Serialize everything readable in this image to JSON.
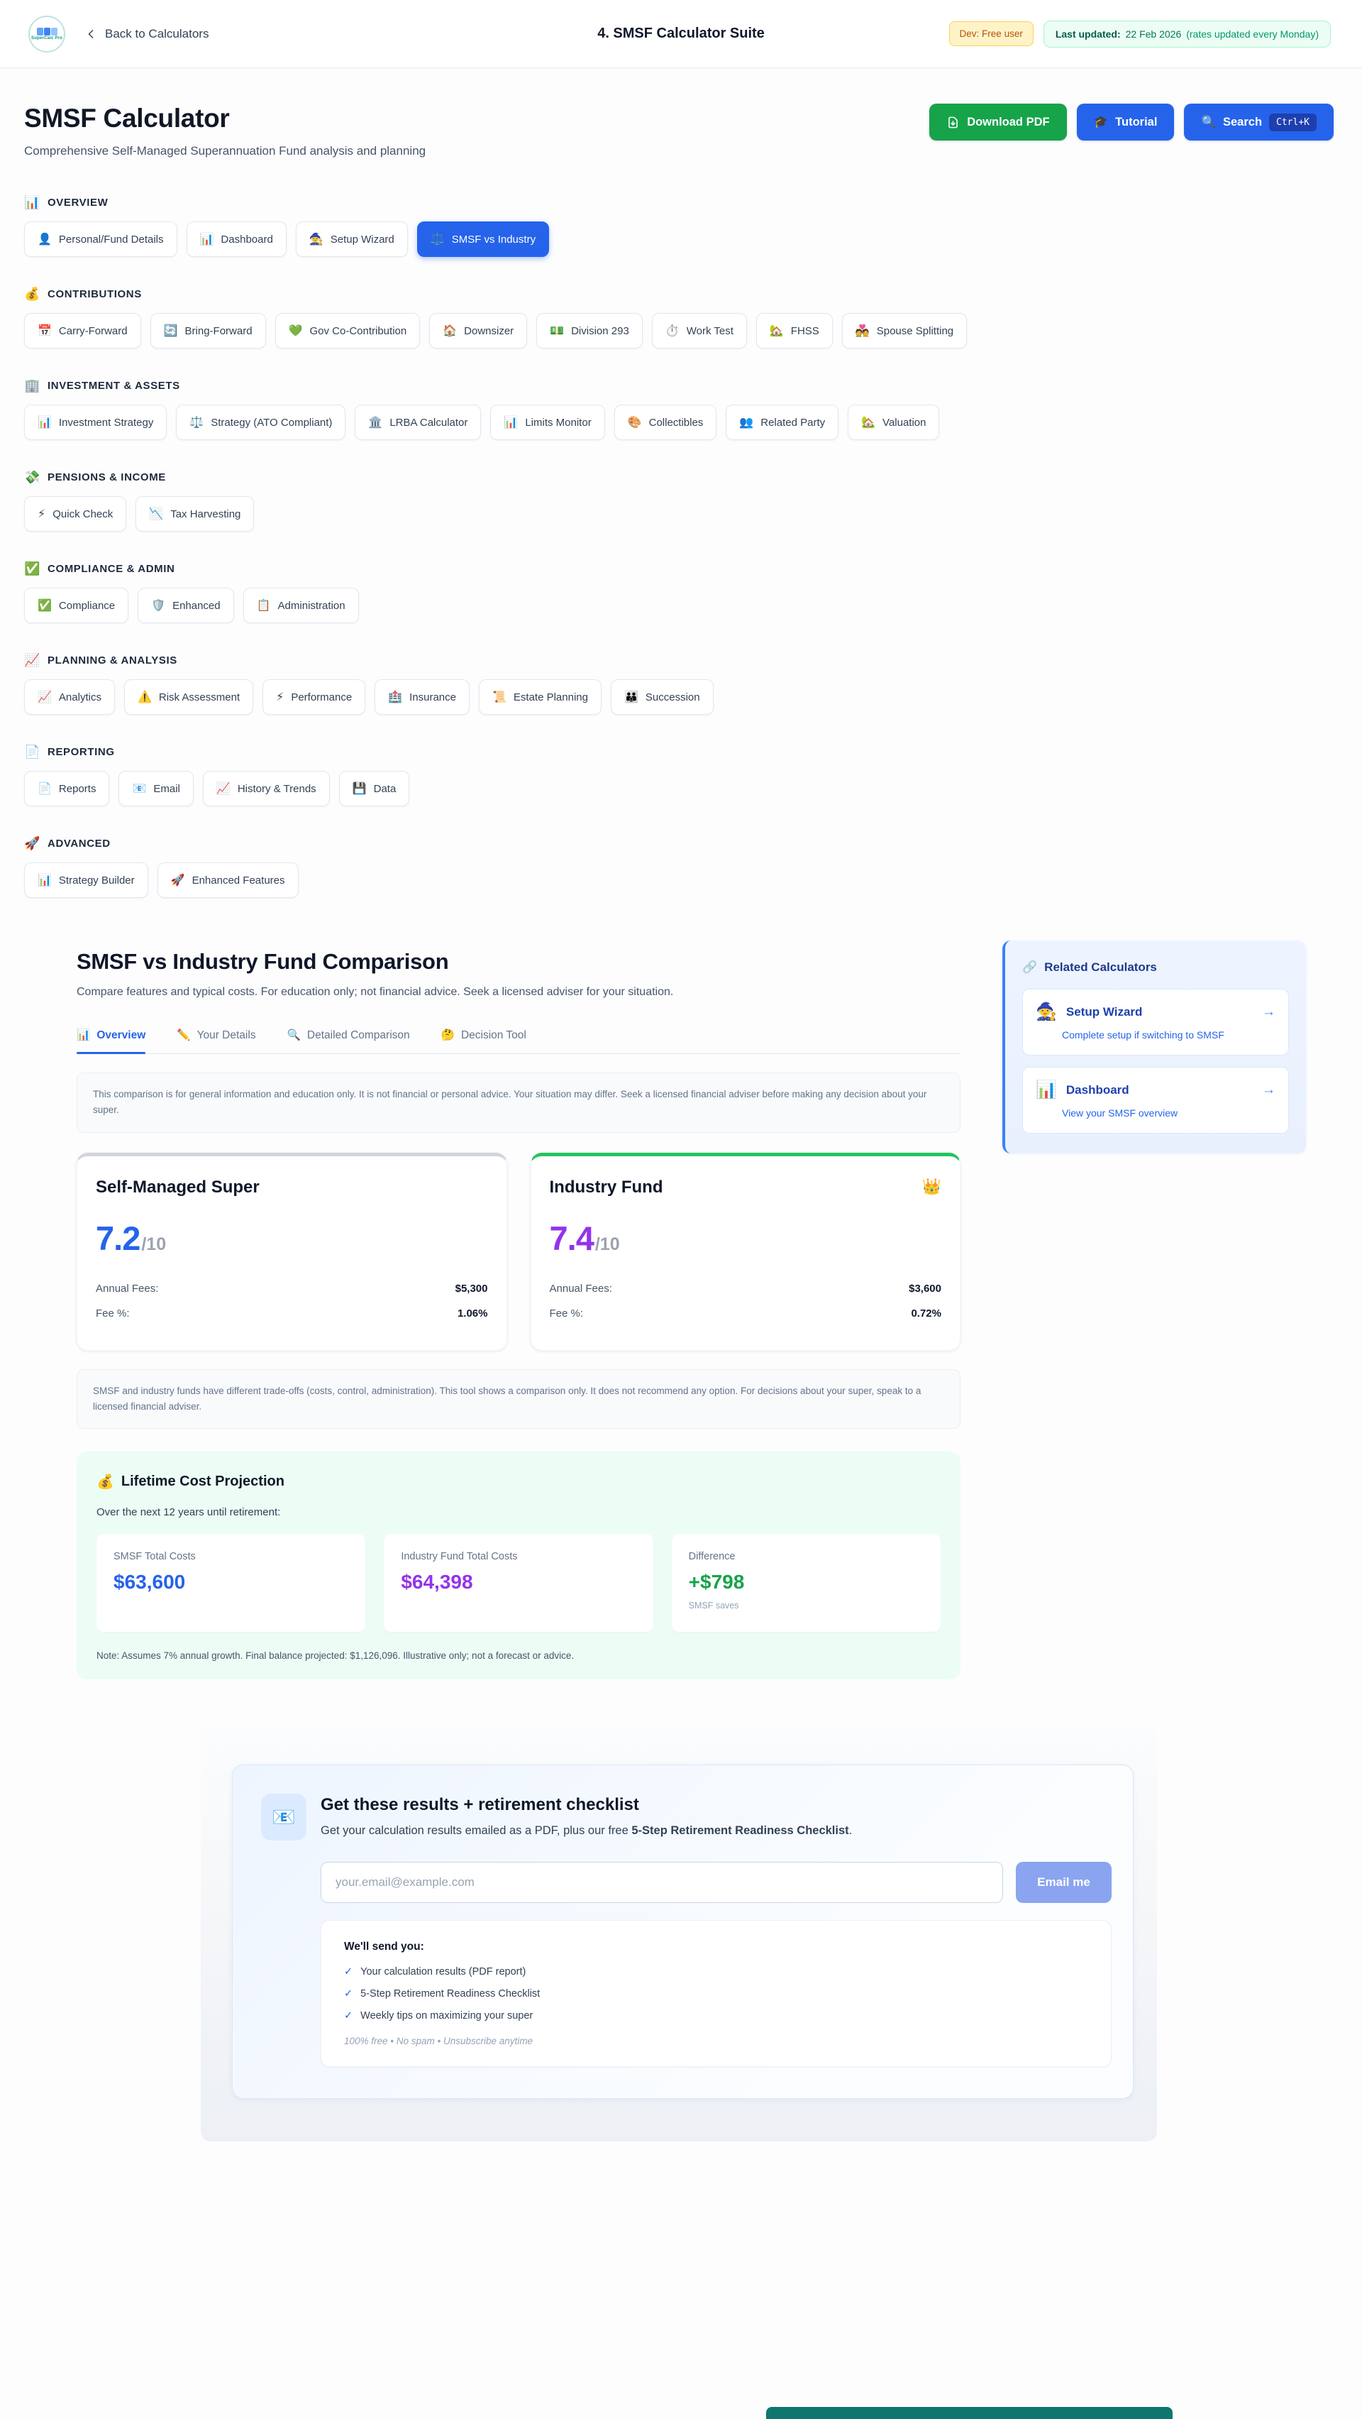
{
  "header": {
    "logo_text": "SuperCalc Pro",
    "back_label": "Back to Calculators",
    "title": "4. SMSF Calculator Suite",
    "dev_badge": "Dev: Free user",
    "updated_label": "Last updated:",
    "updated_value": "22 Feb 2026",
    "updated_note": "(rates updated every Monday)"
  },
  "page": {
    "title": "SMSF Calculator",
    "subtitle": "Comprehensive Self-Managed Superannuation Fund analysis and planning",
    "download_label": "Download PDF",
    "tutorial_icon": "🎓",
    "tutorial_label": "Tutorial",
    "search_icon": "🔍",
    "search_label": "Search",
    "search_kbd": "Ctrl+K"
  },
  "nav_sections": [
    {
      "icon": "📊",
      "label": "OVERVIEW",
      "items": [
        {
          "icon": "👤",
          "label": "Personal/Fund Details"
        },
        {
          "icon": "📊",
          "label": "Dashboard"
        },
        {
          "icon": "🧙",
          "label": "Setup Wizard"
        },
        {
          "icon": "⚖️",
          "label": "SMSF vs Industry",
          "active": true
        }
      ]
    },
    {
      "icon": "💰",
      "label": "CONTRIBUTIONS",
      "items": [
        {
          "icon": "📅",
          "label": "Carry-Forward"
        },
        {
          "icon": "🔄",
          "label": "Bring-Forward"
        },
        {
          "icon": "💚",
          "label": "Gov Co-Contribution"
        },
        {
          "icon": "🏠",
          "label": "Downsizer"
        },
        {
          "icon": "💵",
          "label": "Division 293"
        },
        {
          "icon": "⏱️",
          "label": "Work Test"
        },
        {
          "icon": "🏡",
          "label": "FHSS"
        },
        {
          "icon": "💑",
          "label": "Spouse Splitting"
        }
      ]
    },
    {
      "icon": "🏢",
      "label": "INVESTMENT & ASSETS",
      "items": [
        {
          "icon": "📊",
          "label": "Investment Strategy"
        },
        {
          "icon": "⚖️",
          "label": "Strategy (ATO Compliant)"
        },
        {
          "icon": "🏛️",
          "label": "LRBA Calculator"
        },
        {
          "icon": "📊",
          "label": "Limits Monitor"
        },
        {
          "icon": "🎨",
          "label": "Collectibles"
        },
        {
          "icon": "👥",
          "label": "Related Party"
        },
        {
          "icon": "🏡",
          "label": "Valuation"
        }
      ]
    },
    {
      "icon": "💸",
      "label": "PENSIONS & INCOME",
      "items": [
        {
          "icon": "⚡",
          "label": "Quick Check"
        },
        {
          "icon": "📉",
          "label": "Tax Harvesting"
        }
      ]
    },
    {
      "icon": "✅",
      "label": "COMPLIANCE & ADMIN",
      "items": [
        {
          "icon": "✅",
          "label": "Compliance"
        },
        {
          "icon": "🛡️",
          "label": "Enhanced"
        },
        {
          "icon": "📋",
          "label": "Administration"
        }
      ]
    },
    {
      "icon": "📈",
      "label": "PLANNING & ANALYSIS",
      "items": [
        {
          "icon": "📈",
          "label": "Analytics"
        },
        {
          "icon": "⚠️",
          "label": "Risk Assessment"
        },
        {
          "icon": "⚡",
          "label": "Performance"
        },
        {
          "icon": "🏥",
          "label": "Insurance"
        },
        {
          "icon": "📜",
          "label": "Estate Planning"
        },
        {
          "icon": "👪",
          "label": "Succession"
        }
      ]
    },
    {
      "icon": "📄",
      "label": "REPORTING",
      "items": [
        {
          "icon": "📄",
          "label": "Reports"
        },
        {
          "icon": "📧",
          "label": "Email"
        },
        {
          "icon": "📈",
          "label": "History & Trends"
        },
        {
          "icon": "💾",
          "label": "Data"
        }
      ]
    },
    {
      "icon": "🚀",
      "label": "ADVANCED",
      "items": [
        {
          "icon": "📊",
          "label": "Strategy Builder"
        },
        {
          "icon": "🚀",
          "label": "Enhanced Features"
        }
      ]
    }
  ],
  "comparison": {
    "title": "SMSF vs Industry Fund Comparison",
    "subtitle": "Compare features and typical costs. For education only; not financial advice. Seek a licensed adviser for your situation.",
    "tabs": [
      {
        "icon": "📊",
        "label": "Overview",
        "active": true
      },
      {
        "icon": "✏️",
        "label": "Your Details"
      },
      {
        "icon": "🔍",
        "label": "Detailed Comparison"
      },
      {
        "icon": "🤔",
        "label": "Decision Tool"
      }
    ],
    "disclaimer_top": "This comparison is for general information and education only. It is not financial or personal advice. Your situation may differ. Seek a licensed financial adviser before making any decision about your super.",
    "funds": [
      {
        "name": "Self-Managed Super",
        "badge": "",
        "score": "7.2",
        "score_suffix": "/10",
        "score_color": "#2563eb",
        "accent": "#d1d5db",
        "rows": [
          {
            "label": "Annual Fees:",
            "value": "$5,300"
          },
          {
            "label": "Fee %:",
            "value": "1.06%"
          }
        ]
      },
      {
        "name": "Industry Fund",
        "badge": "👑",
        "score": "7.4",
        "score_suffix": "/10",
        "score_color": "#9333ea",
        "accent": "#22c55e",
        "rows": [
          {
            "label": "Annual Fees:",
            "value": "$3,600"
          },
          {
            "label": "Fee %:",
            "value": "0.72%"
          }
        ]
      }
    ],
    "disclaimer_bottom": "SMSF and industry funds have different trade-offs (costs, control, administration). This tool shows a comparison only. It does not recommend any option. For decisions about your super, speak to a licensed financial adviser.",
    "lifetime": {
      "icon": "💰",
      "title": "Lifetime Cost Projection",
      "subtitle": "Over the next 12 years until retirement:",
      "cards": [
        {
          "label": "SMSF Total Costs",
          "value": "$63,600",
          "color": "#2563eb",
          "note": ""
        },
        {
          "label": "Industry Fund Total Costs",
          "value": "$64,398",
          "color": "#9333ea",
          "note": ""
        },
        {
          "label": "Difference",
          "value": "+$798",
          "color": "#16a34a",
          "note": "SMSF saves"
        }
      ],
      "note": "Note: Assumes 7% annual growth. Final balance projected: $1,126,096. Illustrative only; not a forecast or advice."
    }
  },
  "related": {
    "icon": "🔗",
    "title": "Related Calculators",
    "items": [
      {
        "icon": "🧙",
        "title": "Setup Wizard",
        "desc": "Complete setup if switching to SMSF",
        "arrow": "→"
      },
      {
        "icon": "📊",
        "title": "Dashboard",
        "desc": "View your SMSF overview",
        "arrow": "→"
      }
    ]
  },
  "email_capture": {
    "icon": "📧",
    "title": "Get these results + retirement checklist",
    "subtitle_prefix": "Get your calculation results emailed as a PDF, plus our free ",
    "subtitle_bold": "5-Step Retirement Readiness Checklist",
    "subtitle_suffix": ".",
    "input_placeholder": "your.email@example.com",
    "button": "Email me",
    "list_title": "We'll send you:",
    "checkmark": "✓",
    "list": [
      "Your calculation results (PDF report)",
      "5-Step Retirement Readiness Checklist",
      "Weekly tips on maximizing your super"
    ],
    "footnote": "100% free • No spam • Unsubscribe anytime"
  }
}
